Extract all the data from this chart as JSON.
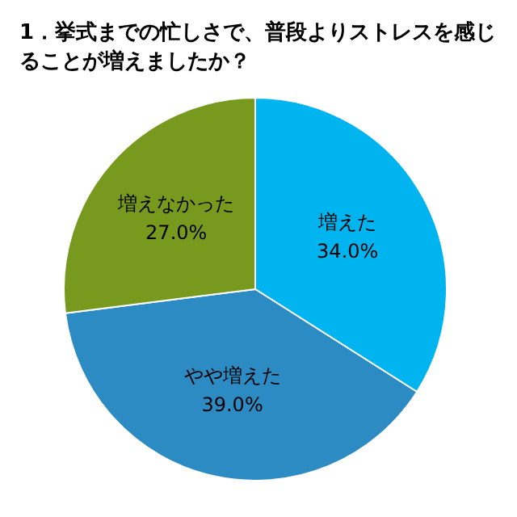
{
  "chart_data": {
    "type": "pie",
    "title": "1．挙式までの忙しさで、普段よりストレスを感じることが増えましたか？",
    "categories": [
      "増えた",
      "やや増えた",
      "増えなかった"
    ],
    "values": [
      34.0,
      39.0,
      27.0
    ],
    "colors": [
      "#00b4f0",
      "#2d8bc4",
      "#779a1e"
    ],
    "value_labels": [
      "34.0%",
      "39.0%",
      "27.0%"
    ],
    "legend": false
  }
}
